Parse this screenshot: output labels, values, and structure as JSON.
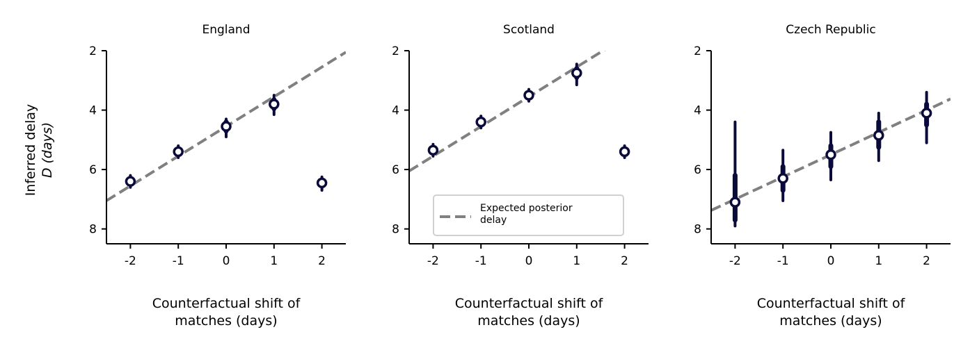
{
  "figure": {
    "ylabel_lines": [
      "Inferred delay",
      "D (days)"
    ],
    "xlabel_lines": [
      "Counterfactual shift of",
      "matches (days)"
    ],
    "legend_label_lines": [
      "Expected posterior",
      "delay"
    ]
  },
  "colors": {
    "marker": "#0b0b3b",
    "marker_fill": "#ffffff",
    "expected_line": "#808080",
    "axis": "#000000"
  },
  "chart_data": [
    {
      "type": "scatter",
      "title": "England",
      "xlabel": "Counterfactual shift of matches (days)",
      "ylabel": "Inferred delay D (days)",
      "x": [
        -2,
        -1,
        0,
        1,
        2
      ],
      "x_tick_labels": [
        "-2",
        "-1",
        "0",
        "1",
        "2"
      ],
      "y_ticks": [
        2,
        4,
        6,
        8
      ],
      "ylim": [
        8.5,
        2
      ],
      "xlim": [
        -2.5,
        2.5
      ],
      "y_inverted": true,
      "series": [
        {
          "median": [
            6.4,
            5.4,
            4.55,
            3.8,
            6.45
          ],
          "ci_inner": [
            [
              6.3,
              6.5
            ],
            [
              5.3,
              5.5
            ],
            [
              4.4,
              4.7
            ],
            [
              3.65,
              3.95
            ],
            [
              6.35,
              6.55
            ]
          ],
          "ci_outer": [
            [
              6.2,
              6.6
            ],
            [
              5.2,
              5.6
            ],
            [
              4.3,
              4.9
            ],
            [
              3.5,
              4.15
            ],
            [
              6.25,
              6.7
            ]
          ]
        }
      ],
      "expected_line": {
        "intercept": 4.55,
        "slope": -1.0
      },
      "legend": false,
      "grid": false
    },
    {
      "type": "scatter",
      "title": "Scotland",
      "xlabel": "Counterfactual shift of matches (days)",
      "ylabel": "",
      "x": [
        -2,
        -1,
        0,
        1,
        2
      ],
      "x_tick_labels": [
        "-2",
        "-1",
        "0",
        "1",
        "2"
      ],
      "y_ticks": [
        2,
        4,
        6,
        8
      ],
      "ylim": [
        8.5,
        2
      ],
      "xlim": [
        -2.5,
        2.5
      ],
      "y_inverted": true,
      "series": [
        {
          "median": [
            5.35,
            4.4,
            3.5,
            2.75,
            5.4
          ],
          "ci_inner": [
            [
              5.25,
              5.45
            ],
            [
              4.3,
              4.5
            ],
            [
              3.4,
              3.6
            ],
            [
              2.6,
              2.9
            ],
            [
              5.3,
              5.5
            ]
          ],
          "ci_outer": [
            [
              5.15,
              5.55
            ],
            [
              4.2,
              4.6
            ],
            [
              3.3,
              3.7
            ],
            [
              2.45,
              3.15
            ],
            [
              5.2,
              5.6
            ]
          ]
        }
      ],
      "expected_line": {
        "intercept": 3.55,
        "slope": -1.0
      },
      "legend": true,
      "legend_location": "lower-right",
      "grid": false
    },
    {
      "type": "scatter",
      "title": "Czech Republic",
      "xlabel": "Counterfactual shift of matches (days)",
      "ylabel": "",
      "x": [
        -2,
        -1,
        0,
        1,
        2
      ],
      "x_tick_labels": [
        "-2",
        "-1",
        "0",
        "1",
        "2"
      ],
      "y_ticks": [
        2,
        4,
        6,
        8
      ],
      "ylim": [
        8.5,
        2
      ],
      "xlim": [
        -2.5,
        2.5
      ],
      "y_inverted": true,
      "series": [
        {
          "median": [
            7.1,
            6.3,
            5.5,
            4.85,
            4.1
          ],
          "ci_inner": [
            [
              6.2,
              7.7
            ],
            [
              5.9,
              6.7
            ],
            [
              5.2,
              5.9
            ],
            [
              4.4,
              5.25
            ],
            [
              3.8,
              4.5
            ]
          ],
          "ci_outer": [
            [
              4.4,
              7.9
            ],
            [
              5.35,
              7.05
            ],
            [
              4.75,
              6.35
            ],
            [
              4.1,
              5.7
            ],
            [
              3.4,
              5.1
            ]
          ]
        }
      ],
      "expected_line": {
        "intercept": 5.5,
        "slope": -0.75
      },
      "legend": false,
      "grid": false
    }
  ]
}
